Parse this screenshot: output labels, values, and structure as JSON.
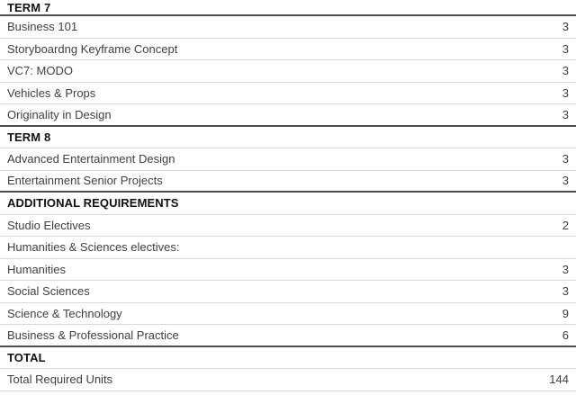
{
  "table": {
    "colors": {
      "background": "#ffffff",
      "header_text": "#111111",
      "row_text": "#404040",
      "light_divider": "#d9d9d9",
      "dark_divider": "#4d4d4d"
    },
    "rows": [
      {
        "type": "header",
        "label": "TERM 7",
        "value": ""
      },
      {
        "type": "course",
        "label": "Business 101",
        "value": "3"
      },
      {
        "type": "course",
        "label": "Storyboardng Keyframe Concept",
        "value": "3"
      },
      {
        "type": "course",
        "label": "VC7: MODO",
        "value": "3"
      },
      {
        "type": "course",
        "label": "Vehicles & Props",
        "value": "3"
      },
      {
        "type": "course",
        "label": "Originality in Design",
        "value": "3"
      },
      {
        "type": "header",
        "label": "TERM 8",
        "value": ""
      },
      {
        "type": "course",
        "label": "Advanced Entertainment Design",
        "value": "3"
      },
      {
        "type": "course",
        "label": "Entertainment Senior Projects",
        "value": "3"
      },
      {
        "type": "header",
        "label": "ADDITIONAL REQUIREMENTS",
        "value": ""
      },
      {
        "type": "course",
        "label": "Studio Electives",
        "value": "2"
      },
      {
        "type": "course",
        "label": "Humanities & Sciences electives:",
        "value": ""
      },
      {
        "type": "course",
        "label": "Humanities",
        "value": "3"
      },
      {
        "type": "course",
        "label": "Social Sciences",
        "value": "3"
      },
      {
        "type": "course",
        "label": "Science & Technology",
        "value": "9"
      },
      {
        "type": "course",
        "label": "Business & Professional Practice",
        "value": "6"
      },
      {
        "type": "header",
        "label": "TOTAL",
        "value": ""
      },
      {
        "type": "course",
        "label": "Total Required Units",
        "value": "144"
      }
    ]
  }
}
